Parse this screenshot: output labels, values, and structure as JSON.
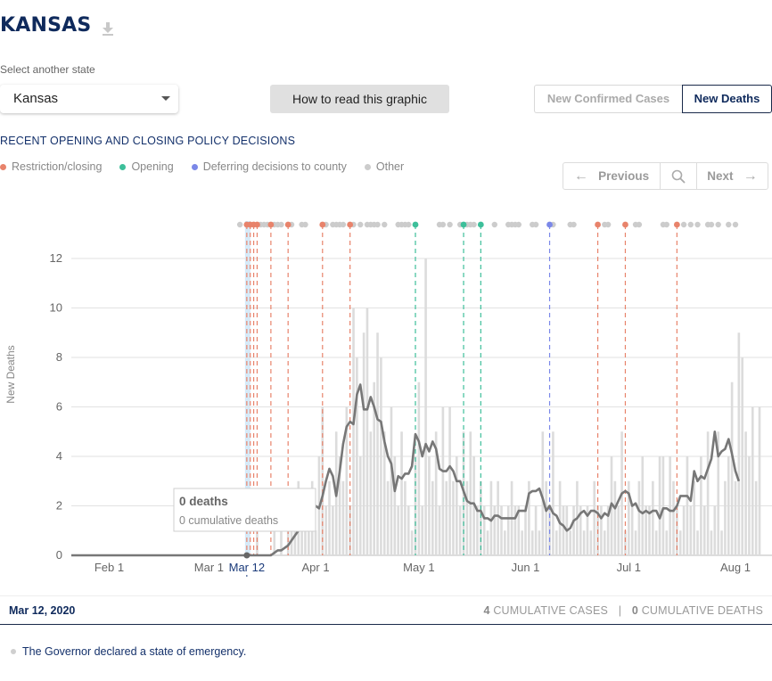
{
  "page": {
    "title": "KANSAS",
    "select_label": "Select another state",
    "selected_state": "Kansas",
    "howto_label": "How to read this graphic",
    "toggle": {
      "cases_label": "New Confirmed Cases",
      "deaths_label": "New Deaths",
      "active": "New Deaths"
    },
    "policy_heading": "RECENT OPENING AND CLOSING POLICY DECISIONS",
    "legend": [
      {
        "label": "Restriction/closing",
        "color": "#e8836b"
      },
      {
        "label": "Opening",
        "color": "#3dbf9a"
      },
      {
        "label": "Deferring decisions to county",
        "color": "#7b88e8"
      },
      {
        "label": "Other",
        "color": "#cccccc"
      }
    ],
    "pager": {
      "prev_label": "Previous",
      "next_label": "Next"
    }
  },
  "tooltip": {
    "title": "0 deaths",
    "subtitle": "0 cumulative deaths"
  },
  "footer": {
    "date": "Mar 12, 2020",
    "cases_value": "4",
    "cases_label": "CUMULATIVE CASES",
    "deaths_value": "0",
    "deaths_label": "CUMULATIVE DEATHS",
    "separator": "|"
  },
  "note": "The Governor declared a state of emergency.",
  "chart_data": {
    "type": "bar",
    "ylabel": "New Deaths",
    "ylim": [
      0,
      13.6
    ],
    "yticks": [
      0,
      2,
      4,
      6,
      8,
      10,
      12
    ],
    "grid": true,
    "start_date": "2020-01-21",
    "xticks": [
      {
        "day": 11,
        "label": "Feb 1"
      },
      {
        "day": 40,
        "label": "Mar 1"
      },
      {
        "day": 51,
        "label": "Mar 12",
        "highlight": true
      },
      {
        "day": 71,
        "label": "Apr 1"
      },
      {
        "day": 101,
        "label": "May 1"
      },
      {
        "day": 132,
        "label": "Jun 1"
      },
      {
        "day": 162,
        "label": "Jul 1"
      },
      {
        "day": 193,
        "label": "Aug 1"
      }
    ],
    "highlight_day": 51,
    "series": [
      {
        "name": "New Deaths",
        "type": "bar",
        "color": "#dcdcdc",
        "values": [
          0,
          0,
          0,
          0,
          0,
          0,
          0,
          0,
          0,
          0,
          0,
          0,
          0,
          0,
          0,
          0,
          0,
          0,
          0,
          0,
          0,
          0,
          0,
          0,
          0,
          0,
          0,
          0,
          0,
          0,
          0,
          0,
          0,
          0,
          0,
          0,
          0,
          0,
          0,
          0,
          0,
          0,
          0,
          0,
          0,
          0,
          0,
          0,
          0,
          0,
          0,
          0,
          0,
          0,
          1,
          0,
          0,
          0,
          0,
          1,
          0,
          1,
          0,
          1,
          2,
          1,
          3,
          2,
          1,
          2,
          3,
          1,
          4,
          6,
          2,
          3,
          2,
          5,
          4,
          3,
          6,
          2,
          10,
          8,
          4,
          9,
          10,
          5,
          7,
          9,
          8,
          5,
          3,
          6,
          4,
          2,
          5,
          3,
          2,
          1,
          4,
          7,
          2,
          12,
          4,
          3,
          5,
          2,
          6,
          3,
          6,
          3,
          4,
          2,
          5,
          3,
          5,
          4,
          2,
          3,
          2,
          1,
          3,
          2,
          3,
          2,
          1,
          2,
          3,
          2,
          2,
          1,
          2,
          3,
          1,
          2,
          1,
          5,
          3,
          2,
          5,
          1,
          3,
          2,
          2,
          1,
          2,
          3,
          2,
          1,
          2,
          1,
          3,
          2,
          2,
          1,
          2,
          4,
          3,
          2,
          5,
          1,
          3,
          2,
          1,
          3,
          4,
          2,
          2,
          3,
          1,
          4,
          4,
          1,
          4,
          3,
          2,
          1,
          2,
          4,
          2,
          3,
          1,
          4,
          2,
          5,
          1,
          2,
          5,
          1,
          3,
          4,
          7,
          3,
          9,
          8,
          5,
          4,
          6,
          3,
          6
        ]
      },
      {
        "name": "7-day average",
        "type": "line",
        "color": "#777777",
        "values": [
          0,
          0,
          0,
          0,
          0,
          0,
          0,
          0,
          0,
          0,
          0,
          0,
          0,
          0,
          0,
          0,
          0,
          0,
          0,
          0,
          0,
          0,
          0,
          0,
          0,
          0,
          0,
          0,
          0,
          0,
          0,
          0,
          0,
          0,
          0,
          0,
          0,
          0,
          0,
          0,
          0,
          0,
          0,
          0,
          0,
          0,
          0,
          0,
          0,
          0,
          0,
          0,
          0,
          0,
          0,
          0,
          0,
          0,
          0,
          0.1,
          0.2,
          0.2,
          0.3,
          0.4,
          0.6,
          0.8,
          1.0,
          1.2,
          1.3,
          1.6,
          2.0,
          2.0,
          1.9,
          2.4,
          3.0,
          3.5,
          3.2,
          2.4,
          3.4,
          4.5,
          5.2,
          5.4,
          5.3,
          6.5,
          6.9,
          5.9,
          5.9,
          6.4,
          6.0,
          5.5,
          5.4,
          4.6,
          4.0,
          3.7,
          2.6,
          3.2,
          3.1,
          3.3,
          3.3,
          3.6,
          4.9,
          4.6,
          4.0,
          4.5,
          4.2,
          4.6,
          4.3,
          3.5,
          3.4,
          3.4,
          3.6,
          3.4,
          3.0,
          3.0,
          2.6,
          2.2,
          2.1,
          2.1,
          1.8,
          1.8,
          1.5,
          1.5,
          1.4,
          1.6,
          1.6,
          1.5,
          1.5,
          1.5,
          1.5,
          1.5,
          1.8,
          1.8,
          1.8,
          2.5,
          2.6,
          2.6,
          2.7,
          2.3,
          1.8,
          2.0,
          1.7,
          1.6,
          1.3,
          1.2,
          1.0,
          1.1,
          1.4,
          1.5,
          1.7,
          1.8,
          1.6,
          1.8,
          1.8,
          1.7,
          1.5,
          1.7,
          1.6,
          2.1,
          1.9,
          2.2,
          2.5,
          2.6,
          2.5,
          2.0,
          2.1,
          1.8,
          1.7,
          1.8,
          1.7,
          1.8,
          1.8,
          1.5,
          1.9,
          1.9,
          1.8,
          1.8,
          2.0,
          2.4,
          2.4,
          2.4,
          2.2,
          3.4,
          3.0,
          3.2,
          3.1,
          3.5,
          3.9,
          5.0,
          4.0,
          4.2,
          4.3,
          4.7,
          4.1,
          3.4,
          3.0
        ]
      }
    ],
    "events": [
      {
        "day": 51,
        "type": "restriction"
      },
      {
        "day": 52,
        "type": "restriction"
      },
      {
        "day": 53,
        "type": "restriction"
      },
      {
        "day": 54,
        "type": "restriction"
      },
      {
        "day": 58,
        "type": "restriction"
      },
      {
        "day": 63,
        "type": "restriction"
      },
      {
        "day": 73,
        "type": "restriction"
      },
      {
        "day": 81,
        "type": "restriction"
      },
      {
        "day": 100,
        "type": "opening"
      },
      {
        "day": 114,
        "type": "opening"
      },
      {
        "day": 119,
        "type": "opening"
      },
      {
        "day": 139,
        "type": "county"
      },
      {
        "day": 153,
        "type": "restriction"
      },
      {
        "day": 161,
        "type": "restriction"
      },
      {
        "day": 176,
        "type": "restriction"
      }
    ],
    "other_dots": [
      49,
      55,
      56,
      57,
      59,
      60,
      61,
      64,
      67,
      68,
      74,
      76,
      77,
      78,
      79,
      82,
      84,
      86,
      87,
      88,
      89,
      91,
      95,
      96,
      97,
      98,
      107,
      108,
      110,
      113,
      115,
      116,
      117,
      123,
      127,
      128,
      129,
      130,
      134,
      135,
      140,
      145,
      146,
      155,
      156,
      164,
      165,
      172,
      173,
      178,
      180,
      182,
      185,
      186,
      188,
      191,
      193
    ]
  }
}
